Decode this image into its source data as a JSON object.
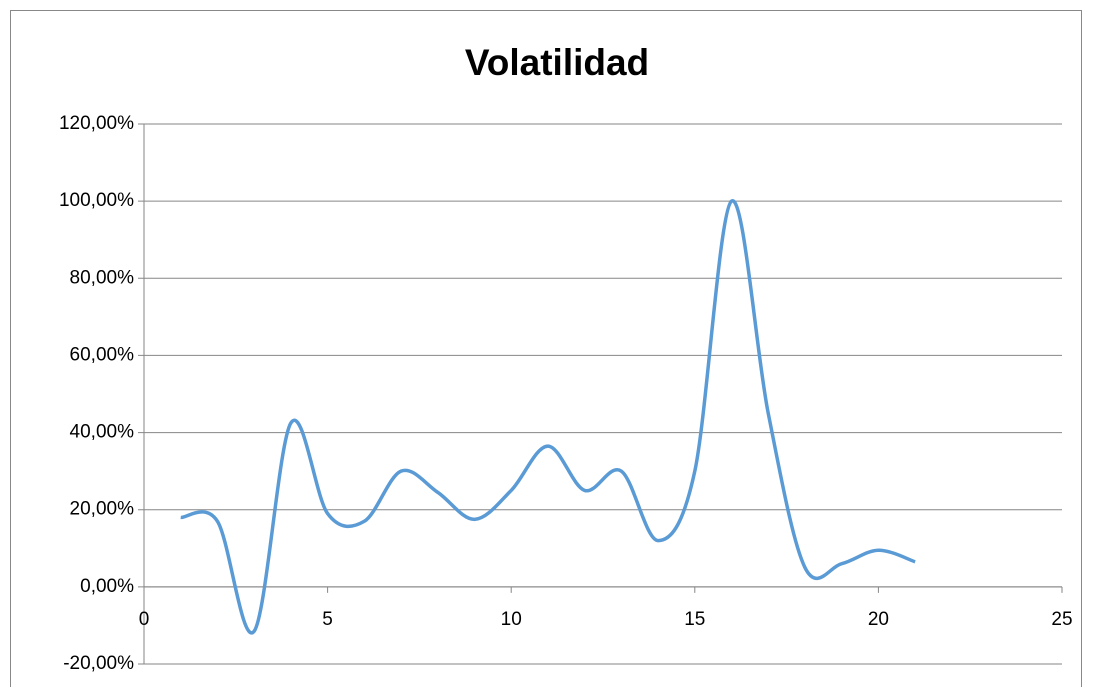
{
  "chart_data": {
    "type": "line",
    "title": "Volatilidad",
    "x": [
      1,
      2,
      3,
      4,
      5,
      6,
      7,
      8,
      9,
      10,
      11,
      12,
      13,
      14,
      15,
      16,
      17,
      18,
      19,
      20,
      21
    ],
    "series": [
      {
        "color": "#5b9bd5",
        "values": [
          18,
          17,
          -11.5,
          42.5,
          19,
          17,
          30,
          24.5,
          17.5,
          25,
          36.5,
          25,
          30,
          12,
          30,
          100,
          45,
          5,
          6,
          9.5,
          6.5
        ]
      }
    ],
    "xlim": [
      0,
      25
    ],
    "xticks": [
      0,
      5,
      10,
      15,
      20,
      25
    ],
    "ylim": [
      -20,
      120
    ],
    "yticks": [
      {
        "value": -20,
        "label": "-20,00%"
      },
      {
        "value": 0,
        "label": "0,00%"
      },
      {
        "value": 20,
        "label": "20,00%"
      },
      {
        "value": 40,
        "label": "40,00%"
      },
      {
        "value": 60,
        "label": "60,00%"
      },
      {
        "value": 80,
        "label": "80,00%"
      },
      {
        "value": 100,
        "label": "100,00%"
      },
      {
        "value": 120,
        "label": "120,00%"
      }
    ],
    "grid": true,
    "smooth": true
  }
}
